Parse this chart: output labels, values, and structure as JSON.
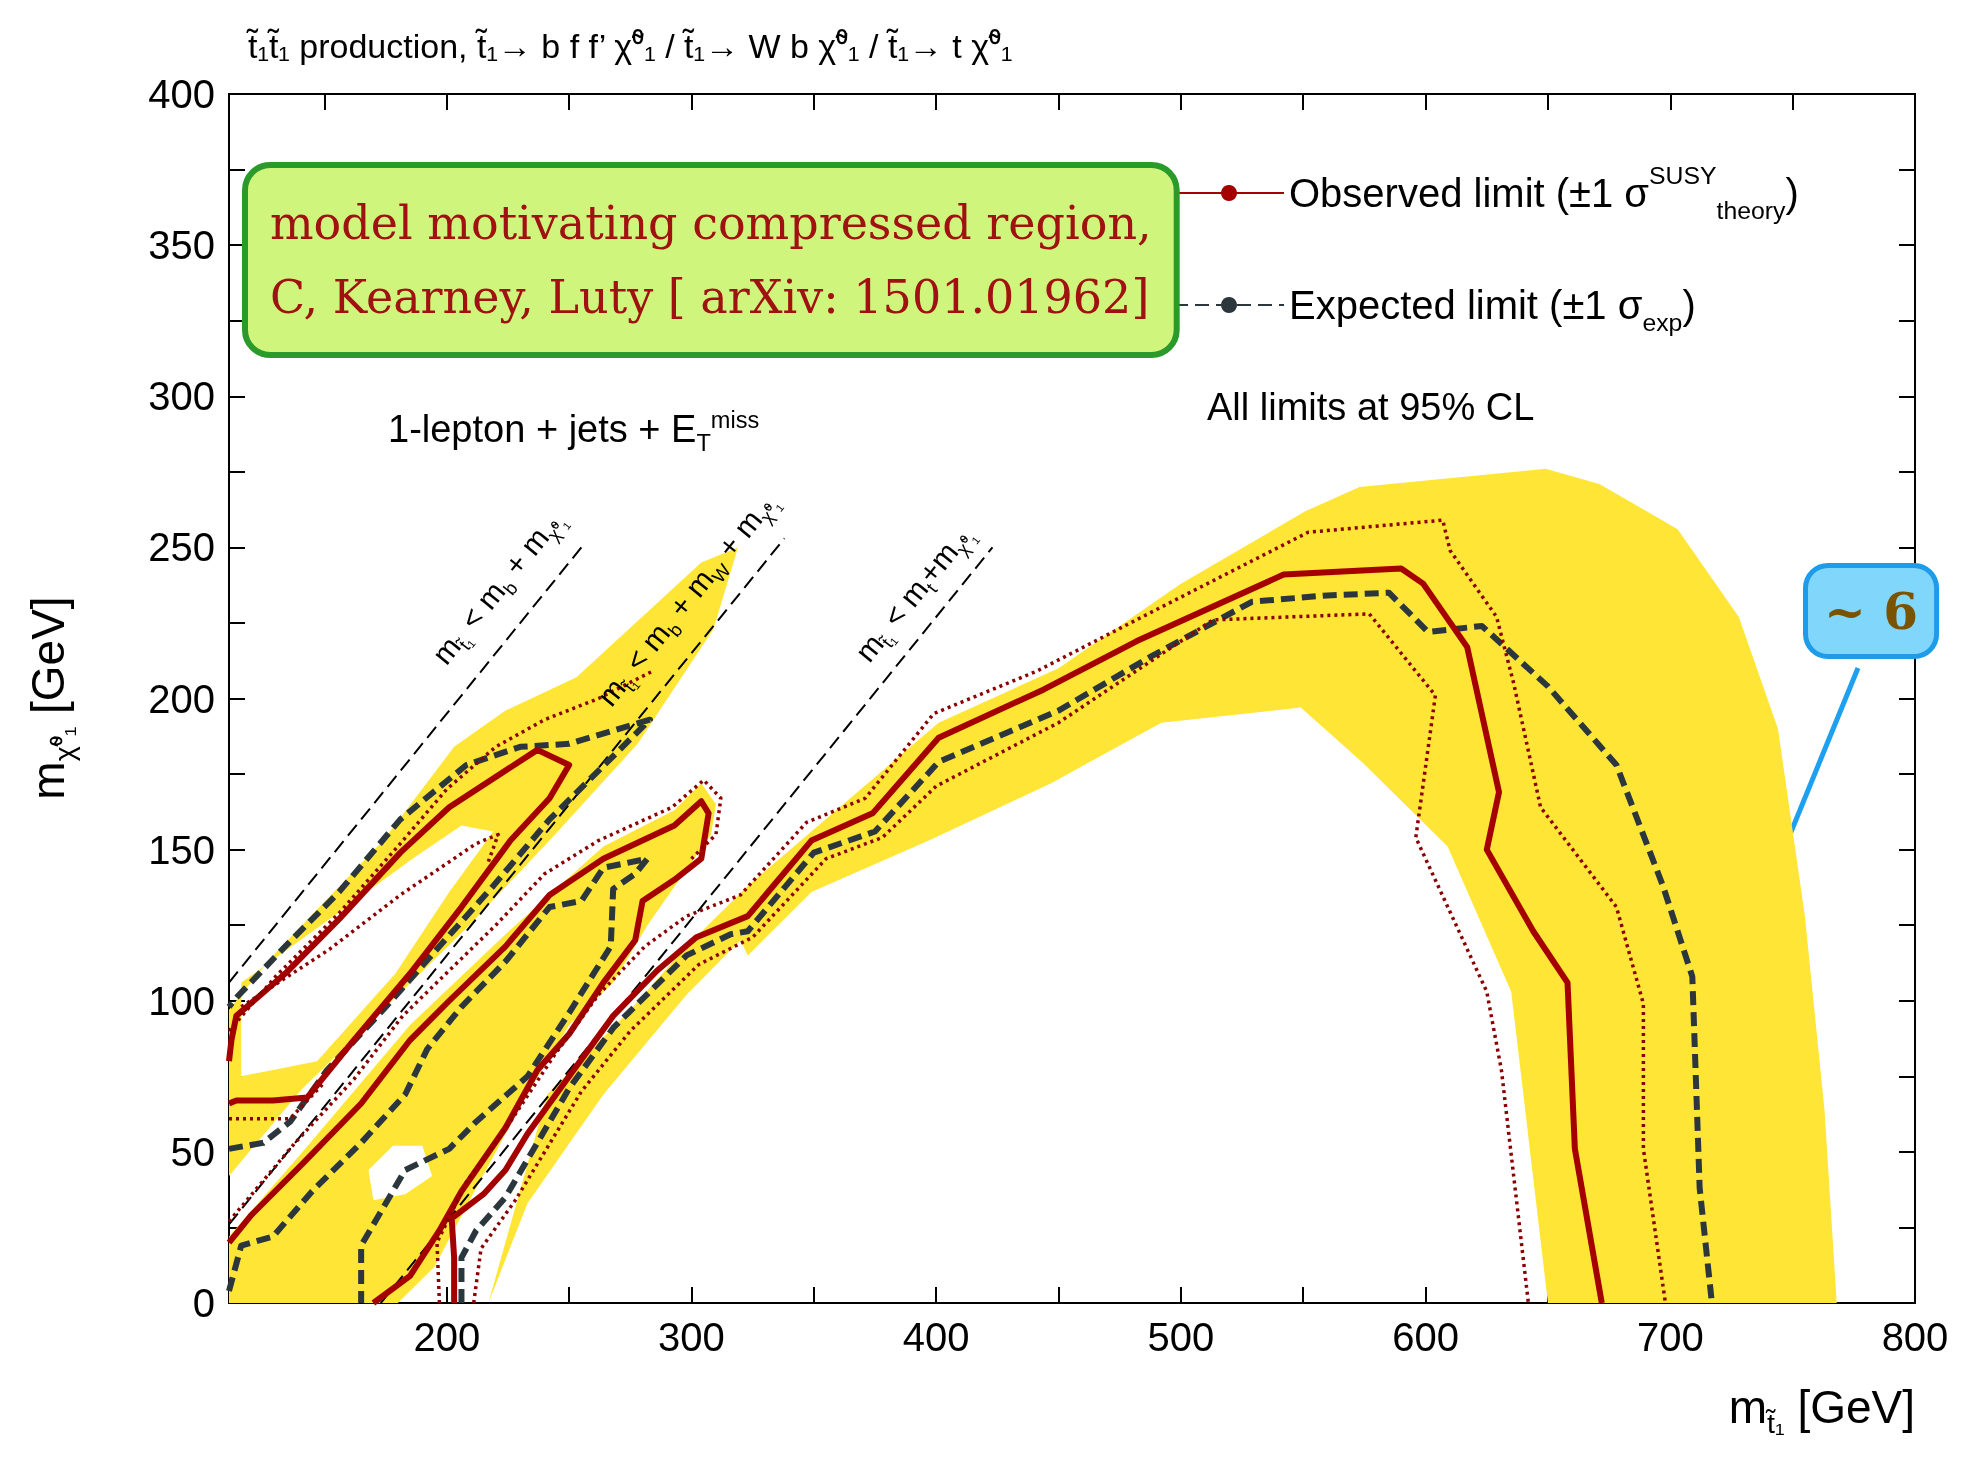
{
  "chart_data": {
    "type": "line",
    "title": "t̃₁t̃₁ production, t̃₁→ b f f’ χ̃⁰₁ / t̃₁→ W b χ̃⁰₁ / t̃₁→ t χ̃⁰₁",
    "xlabel": "m$_{t̃₁}$ [GeV]",
    "ylabel": "m$_{χ̃⁰₁}$ [GeV]",
    "xlim": [
      111,
      800
    ],
    "ylim": [
      0,
      400
    ],
    "xticks": [
      {
        "value": 150,
        "label": null
      },
      200,
      {
        "value": 250,
        "label": null
      },
      300,
      {
        "value": 350,
        "label": null
      },
      400,
      {
        "value": 450,
        "label": null
      },
      500,
      {
        "value": 550,
        "label": null
      },
      600,
      {
        "value": 650,
        "label": null
      },
      700,
      {
        "value": 750,
        "label": null
      },
      800
    ],
    "yticks": [
      0,
      {
        "value": 25,
        "label": null
      },
      50,
      {
        "value": 75,
        "label": null
      },
      100,
      {
        "value": 125,
        "label": null
      },
      150,
      {
        "value": 175,
        "label": null
      },
      200,
      {
        "value": 225,
        "label": null
      },
      250,
      {
        "value": 275,
        "label": null
      },
      300,
      {
        "value": 325,
        "label": null
      },
      350,
      {
        "value": 375,
        "label": null
      },
      400
    ],
    "grid": false,
    "legend": "top right",
    "marker": "none",
    "series": [
      {
        "type": "area",
        "color": "#ffe535",
        "x": [
          217,
          241,
          275,
          298,
          323,
          401,
          450,
          500,
          551,
          573,
          649,
          671,
          703,
          728,
          744,
          755,
          763,
          768,
          650,
          635,
          609,
          574,
          549,
          492,
          447,
          397,
          349,
          323,
          320,
          298,
          264,
          233
        ],
        "values": [
          0,
          69,
          97,
          118,
          138,
          192,
          210,
          238,
          262,
          270,
          276,
          271,
          256,
          227,
          190,
          128,
          64,
          0,
          0,
          103,
          151,
          179,
          197,
          192,
          172,
          153,
          136,
          115,
          120,
          102,
          69,
          33
        ]
      },
      {
        "type": "area",
        "color": "#ffe535",
        "x": [
          111,
          141,
          174,
          208,
          242,
          278,
          309,
          319,
          304,
          253,
          224,
          203,
          174,
          129,
          111,
          116,
          152,
          186,
          206,
          219,
          201,
          179,
          147,
          116,
          116,
          111
        ],
        "values": [
          42,
          71,
          97,
          124,
          153,
          185,
          223,
          250,
          245,
          207,
          196,
          184,
          153,
          115,
          97,
          106,
          127,
          147,
          158,
          156,
          136,
          109,
          80,
          75,
          106,
          97
        ]
      },
      {
        "type": "area",
        "color": "#ffe535",
        "x": [
          111,
          111,
          141,
          185,
          224,
          264,
          293,
          304,
          310,
          308,
          295,
          282,
          268,
          250,
          230,
          210,
          194,
          190,
          178,
          168,
          170,
          183,
          194,
          210,
          195,
          180
        ],
        "values": [
          0,
          22,
          50,
          92,
          122,
          151,
          163,
          172,
          165,
          155,
          140,
          125,
          106,
          92,
          65,
          35,
          42,
          52,
          52,
          44,
          34,
          36,
          42,
          35,
          12,
          0
        ]
      },
      {
        "color": "#000000",
        "line_style": "dashed",
        "x": [
          111,
          255
        ],
        "values": [
          106,
          250
        ]
      },
      {
        "color": "#000000",
        "line_style": "dashed",
        "x": [
          111,
          338
        ],
        "values": [
          26,
          253
        ]
      },
      {
        "color": "#000000",
        "line_style": "dashed",
        "x": [
          173,
          423
        ],
        "values": [
          0,
          250
        ]
      },
      {
        "name": "Expected limit (±1 σ$_{exp}$)",
        "color": "#2b373d",
        "line_style": "dashed",
        "x": [
          206,
          206,
          212,
          224,
          250,
          268,
          298,
          316,
          323,
          350,
          375,
          401,
          450,
          488,
          529,
          558,
          585,
          601,
          623,
          650,
          678,
          697,
          709,
          712,
          717
        ],
        "values": [
          0,
          15,
          24,
          35,
          71,
          91,
          115,
          122,
          123,
          149,
          156,
          179,
          196,
          214,
          232,
          234,
          235,
          222,
          224,
          204,
          178,
          138,
          108,
          38,
          0
        ]
      },
      {
        "color": "#2b373d",
        "line_style": "dashed",
        "x": [
          111,
          125,
          136,
          151,
          174,
          197,
          219,
          242,
          283,
          250,
          230,
          208,
          181,
          156,
          134,
          114,
          111
        ],
        "values": [
          51,
          53,
          60,
          77,
          97,
          118,
          138,
          160,
          193,
          185,
          184,
          178,
          160,
          136,
          118,
          101,
          98
        ]
      },
      {
        "color": "#2b373d",
        "line_style": "dashed",
        "x": [
          111,
          116,
          129,
          145,
          165,
          183,
          192,
          206,
          224,
          242,
          255,
          264,
          282,
          277,
          268,
          267,
          250,
          233,
          212,
          201,
          183,
          165,
          165
        ],
        "values": [
          4,
          19,
          22,
          37,
          53,
          69,
          84,
          98,
          113,
          131,
          133,
          144,
          147,
          142,
          137,
          118,
          96,
          75,
          60,
          51,
          44,
          19,
          0
        ]
      },
      {
        "name": "Observed limit (±1 σ$^{SUSY}$$_{theory}$)",
        "color": "#a50000",
        "line_style": "solid",
        "x": [
          203,
          203,
          202,
          215,
          224,
          233,
          250,
          268,
          286,
          302,
          323,
          349,
          374,
          401,
          444,
          482,
          542,
          590,
          599,
          617,
          630,
          625,
          644,
          658,
          661,
          672
        ],
        "values": [
          0,
          15,
          28,
          36,
          44,
          56,
          75,
          95,
          110,
          121,
          128,
          153,
          162,
          187,
          203,
          219,
          241,
          243,
          238,
          217,
          169,
          150,
          123,
          106,
          51,
          0
        ]
      },
      {
        "color": "#a50000",
        "line_style": "solid",
        "x": [
          111,
          114,
          129,
          143,
          161,
          185,
          206,
          226,
          242,
          250,
          237,
          201,
          181,
          156,
          134,
          114,
          112,
          111
        ],
        "values": [
          66,
          67,
          67,
          68,
          86,
          109,
          131,
          153,
          167,
          178,
          183,
          164,
          149,
          127,
          109,
          95,
          87,
          80
        ]
      },
      {
        "color": "#a50000",
        "line_style": "solid",
        "x": [
          111,
          120,
          141,
          165,
          185,
          201,
          224,
          242,
          264,
          293,
          304,
          307,
          304,
          293,
          280,
          277,
          264,
          250,
          237,
          224,
          206,
          197,
          185,
          170
        ],
        "values": [
          20,
          29,
          46,
          66,
          87,
          100,
          118,
          135,
          147,
          158,
          166,
          162,
          147,
          140,
          133,
          120,
          106,
          89,
          77,
          58,
          37,
          24,
          9,
          0
        ]
      },
      {
        "color": "#8b0000",
        "line_style": "dotted",
        "x": [
          197,
          196,
          208,
          226,
          244,
          262,
          281,
          298,
          320,
          347,
          371,
          399,
          441,
          489,
          552,
          607,
          610,
          629,
          636,
          647,
          678,
          689,
          689,
          698
        ],
        "values": [
          0,
          20,
          40,
          60,
          82,
          102,
          118,
          128,
          135,
          159,
          167,
          195,
          209,
          229,
          255,
          259,
          249,
          227,
          205,
          164,
          131,
          99,
          51,
          0
        ]
      },
      {
        "color": "#8b0000",
        "line_style": "dotted",
        "x": [
          111,
          130,
          156,
          181,
          200,
          220,
          240,
          262,
          284
        ],
        "values": [
          90,
          108,
          129,
          152,
          170,
          184,
          193,
          200,
          209
        ]
      },
      {
        "color": "#8b0000",
        "line_style": "dotted",
        "x": [
          111,
          136,
          150
        ],
        "values": [
          61,
          61,
          73
        ]
      },
      {
        "color": "#8b0000",
        "line_style": "dotted",
        "x": [
          111,
          138,
          162,
          182,
          220,
          240,
          262,
          292,
          305,
          312,
          310,
          300
        ],
        "values": [
          27,
          53,
          74,
          95,
          125,
          142,
          153,
          164,
          173,
          167,
          155,
          147
        ]
      },
      {
        "color": "#8b0000",
        "line_style": "dotted",
        "x": [
          211,
          214,
          228,
          255,
          275,
          303,
          325,
          355,
          378,
          400,
          450,
          513,
          577,
          604,
          596,
          625,
          631,
          642
        ],
        "values": [
          0,
          18,
          34,
          70,
          90,
          112,
          121,
          147,
          154,
          171,
          192,
          226,
          228,
          201,
          154,
          103,
          77,
          0
        ]
      },
      {
        "color": "#8b0000",
        "line_style": "dotted",
        "x": [
          116,
          152,
          181,
          212,
          221,
          217
        ],
        "values": [
          98,
          117,
          135,
          152,
          155,
          146
        ]
      }
    ],
    "annotations": [
      "1-lepton + jets + E$_{T}$$^{miss}$",
      "All limits at 95% CL",
      "model motivating compressed region,\nC, Kearney, Luty [ arXiv: 1501.01962]",
      "m$_{t̃₁}$ < m$_{b}$ + m$_{χ̃⁰₁}$",
      "m$_{t̃₁}$ < m$_{b}$ + m$_{W}$ + m$_{χ̃⁰₁}$",
      "m$_{t̃₁}$ < m$_{t}$+m$_{χ̃⁰₁}$",
      {
        "text": "~ 6",
        "x": 672,
        "y": 0
      }
    ]
  }
}
